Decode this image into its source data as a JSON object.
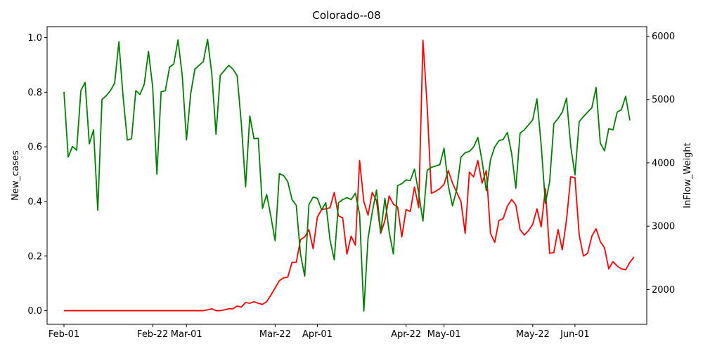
{
  "chart_data": {
    "type": "line",
    "title": "Colorado--08",
    "ylabel_left": "New_cases",
    "ylabel_right": "InFlow_Weight",
    "xlabel": "",
    "x_start": "2020-02-01",
    "x_end": "2020-06-11",
    "xlim": [
      "2020-01-28",
      "2020-06-18"
    ],
    "ylim_left": [
      -0.05,
      1.04
    ],
    "ylim_right": [
      1450,
      6150
    ],
    "x_ticks": [
      {
        "date": "2020-02-01",
        "label": "Feb-01"
      },
      {
        "date": "2020-02-22",
        "label": "Feb-22"
      },
      {
        "date": "2020-03-01",
        "label": "Mar-01"
      },
      {
        "date": "2020-03-22",
        "label": "Mar-22"
      },
      {
        "date": "2020-04-01",
        "label": "Apr-01"
      },
      {
        "date": "2020-04-22",
        "label": "Apr-22"
      },
      {
        "date": "2020-05-01",
        "label": "May-01"
      },
      {
        "date": "2020-05-22",
        "label": "May-22"
      },
      {
        "date": "2020-06-01",
        "label": "Jun-01"
      }
    ],
    "y_ticks_left": [
      {
        "value": 0.0,
        "label": "0.0"
      },
      {
        "value": 0.2,
        "label": "0.2"
      },
      {
        "value": 0.4,
        "label": "0.4"
      },
      {
        "value": 0.6,
        "label": "0.6"
      },
      {
        "value": 0.8,
        "label": "0.8"
      },
      {
        "value": 1.0,
        "label": "1.0"
      }
    ],
    "y_ticks_right": [
      {
        "value": 2000,
        "label": "2000"
      },
      {
        "value": 3000,
        "label": "3000"
      },
      {
        "value": 4000,
        "label": "4000"
      },
      {
        "value": 5000,
        "label": "5000"
      },
      {
        "value": 6000,
        "label": "6000"
      }
    ],
    "series": [
      {
        "axis": "left",
        "color": "#ff0000",
        "values": [
          0,
          0,
          0,
          0,
          0,
          0,
          0,
          0,
          0,
          0,
          0,
          0,
          0,
          0,
          0,
          0,
          0,
          0,
          0,
          0,
          0,
          0,
          0,
          0,
          0,
          0,
          0,
          0,
          0,
          0,
          0,
          0,
          0,
          0,
          0.003,
          0.007,
          0,
          0,
          0.003,
          0.007,
          0.007,
          0.017,
          0.013,
          0.03,
          0.027,
          0.033,
          0.027,
          0.023,
          0.033,
          0.057,
          0.083,
          0.11,
          0.12,
          0.123,
          0.177,
          0.177,
          0.26,
          0.27,
          0.297,
          0.227,
          0.343,
          0.37,
          0.373,
          0.377,
          0.433,
          0.347,
          0.34,
          0.207,
          0.273,
          0.24,
          0.55,
          0.4,
          0.35,
          0.433,
          0.403,
          0.283,
          0.33,
          0.42,
          0.39,
          0.38,
          0.27,
          0.37,
          0.363,
          0.453,
          0.377,
          0.99,
          0.75,
          0.43,
          0.437,
          0.447,
          0.463,
          0.513,
          0.467,
          0.433,
          0.4,
          0.283,
          0.507,
          0.49,
          0.55,
          0.467,
          0.513,
          0.283,
          0.25,
          0.33,
          0.337,
          0.383,
          0.407,
          0.387,
          0.297,
          0.277,
          0.293,
          0.317,
          0.373,
          0.307,
          0.447,
          0.21,
          0.213,
          0.297,
          0.223,
          0.333,
          0.49,
          0.487,
          0.277,
          0.2,
          0.21,
          0.273,
          0.3,
          0.253,
          0.23,
          0.153,
          0.18,
          0.163,
          0.153,
          0.15,
          0.177,
          0.197
        ]
      },
      {
        "axis": "right",
        "color": "#008000",
        "values": [
          5120,
          4090,
          4260,
          4200,
          5140,
          5270,
          4300,
          4520,
          3250,
          5000,
          5060,
          5140,
          5260,
          5910,
          5040,
          4360,
          4380,
          5140,
          5080,
          5240,
          5760,
          5200,
          3820,
          5120,
          5140,
          5510,
          5560,
          5940,
          5380,
          4360,
          5090,
          5480,
          5540,
          5600,
          5950,
          5410,
          4450,
          5380,
          5460,
          5540,
          5480,
          5380,
          4620,
          3620,
          4740,
          4380,
          4390,
          3280,
          3500,
          3150,
          2770,
          3830,
          3800,
          3700,
          3420,
          3330,
          2560,
          2210,
          3340,
          3460,
          3440,
          3260,
          3370,
          2780,
          2470,
          3370,
          3420,
          3450,
          3420,
          3520,
          3190,
          1660,
          2810,
          3220,
          3570,
          2900,
          3440,
          2910,
          2560,
          3640,
          3670,
          3730,
          3720,
          3900,
          3520,
          3080,
          3880,
          3930,
          3950,
          3970,
          4230,
          3640,
          3320,
          3580,
          4090,
          4160,
          4180,
          4250,
          4400,
          4030,
          3560,
          4050,
          4250,
          4350,
          4370,
          4480,
          4150,
          3600,
          4470,
          4520,
          4600,
          4680,
          5010,
          4280,
          3360,
          3700,
          4620,
          4700,
          4800,
          5020,
          4260,
          3810,
          4650,
          4730,
          4800,
          4870,
          5190,
          4310,
          4190,
          4540,
          4520,
          4800,
          4840,
          5050,
          4670
        ]
      }
    ]
  }
}
